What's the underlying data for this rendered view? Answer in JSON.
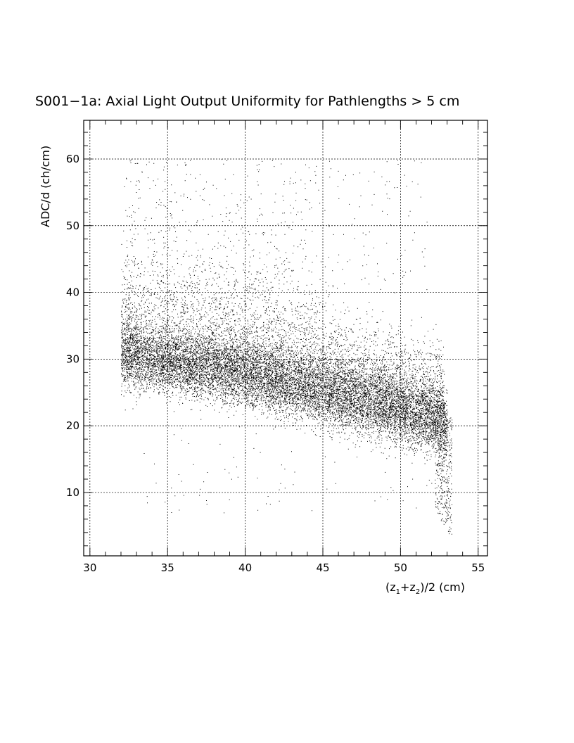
{
  "chart_data": {
    "type": "scatter",
    "title": "S001−1a: Axial Light Output Uniformity for Pathlengths > 5 cm",
    "xlabel_main": "(z",
    "xlabel_sub1": "1",
    "xlabel_plus": "+z",
    "xlabel_sub2": "2",
    "xlabel_tail": ")/2 (cm)",
    "ylabel": "ADC/d (ch/cm)",
    "xlim": [
      29.6,
      55.6
    ],
    "ylim": [
      0.5,
      65.8
    ],
    "x_ticks": [
      "30",
      "35",
      "40",
      "45",
      "50",
      "55"
    ],
    "y_ticks": [
      "10",
      "20",
      "30",
      "40",
      "50",
      "60"
    ],
    "grid": true,
    "point_color": "#000000",
    "description_of_distribution": {
      "x_range": [
        32.0,
        53.3
      ],
      "core_band": [
        [
          32,
          30.5
        ],
        [
          35,
          29.5
        ],
        [
          38,
          28.5
        ],
        [
          41,
          27
        ],
        [
          44,
          25.5
        ],
        [
          47,
          24
        ],
        [
          50,
          22
        ],
        [
          52.5,
          20.5
        ]
      ],
      "tail_to_low_adc_near_x": 53,
      "upper_scatter_max_y": 60
    }
  }
}
